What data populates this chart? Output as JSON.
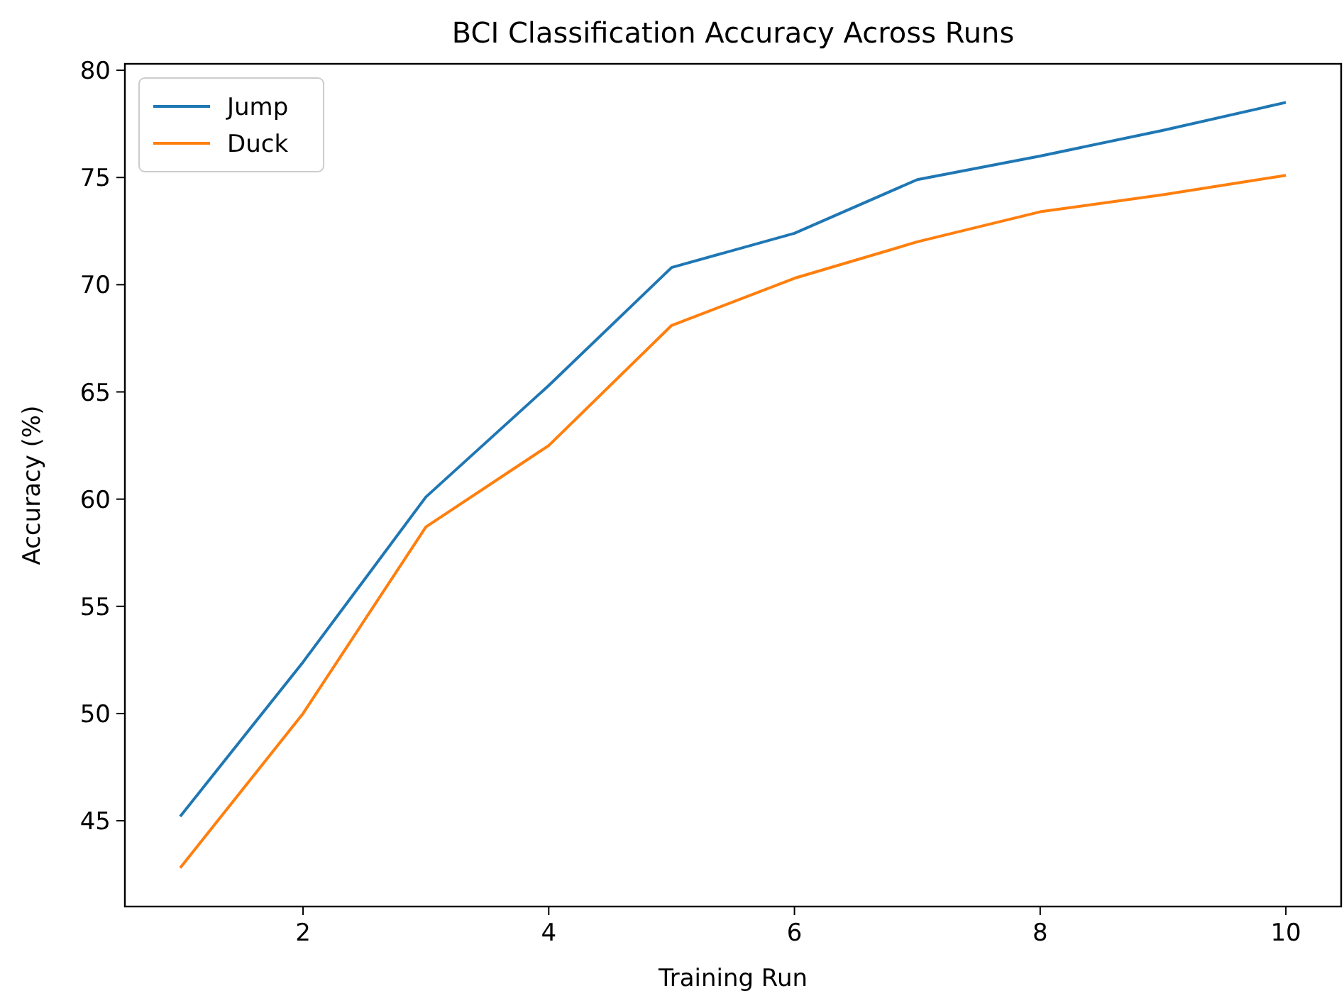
{
  "chart_data": {
    "type": "line",
    "title": "BCI Classification Accuracy Across Runs",
    "xlabel": "Training Run",
    "ylabel": "Accuracy (%)",
    "x": [
      1,
      2,
      3,
      4,
      5,
      6,
      7,
      8,
      9,
      10
    ],
    "series": [
      {
        "name": "Jump",
        "color": "#1f77b4",
        "values": [
          45.2,
          52.4,
          60.1,
          65.3,
          70.8,
          72.4,
          74.9,
          76.0,
          77.2,
          78.5
        ]
      },
      {
        "name": "Duck",
        "color": "#ff7f0e",
        "values": [
          42.8,
          50.0,
          58.7,
          62.5,
          68.1,
          70.3,
          72.0,
          73.4,
          74.2,
          75.1
        ]
      }
    ],
    "xlim": [
      0.55,
      10.45
    ],
    "xticks": [
      2,
      4,
      6,
      8,
      10
    ],
    "ylim": [
      41.0,
      80.3
    ],
    "yticks": [
      45,
      50,
      55,
      60,
      65,
      70,
      75,
      80
    ],
    "grid": false,
    "legend": "top left",
    "marker": "none",
    "line_style": "solid"
  }
}
